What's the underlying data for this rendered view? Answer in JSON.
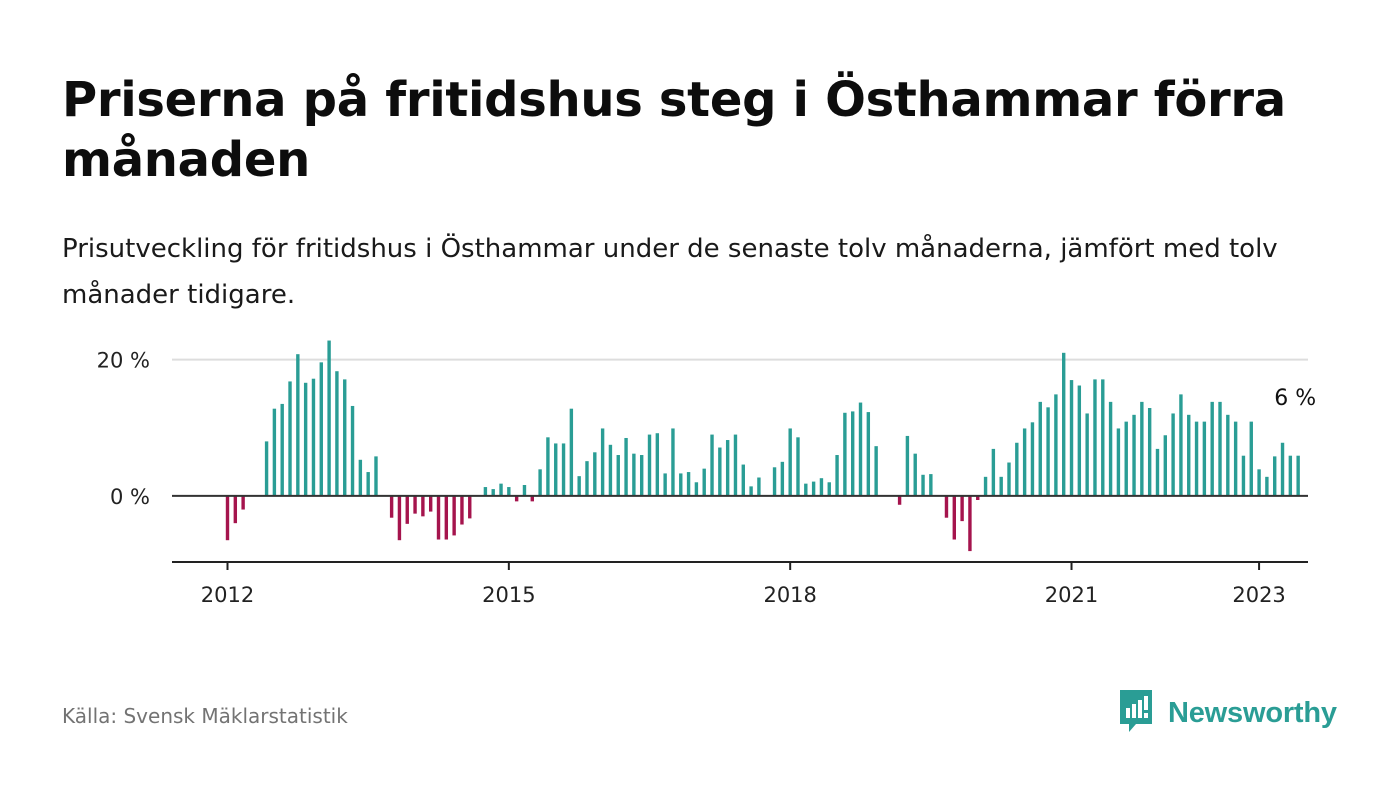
{
  "title": "Priserna på fritidshus steg i Östhammar förra månaden",
  "subtitle": "Prisutveckling för fritidshus i Östhammar under de senaste tolv månaderna, jämfört med tolv månader tidigare.",
  "source": "Källa: Svensk Mäklarstatistik",
  "brand": {
    "name": "Newsworthy",
    "color": "#2a9d95",
    "icon": "newsworthy-logo-icon"
  },
  "colors": {
    "positive": "#2a9d95",
    "negative": "#a5144d",
    "grid": "#dddddd",
    "zero_line": "#333333"
  },
  "chart_data": {
    "type": "bar",
    "start": "2012-01",
    "frequency": "monthly",
    "unit": "%",
    "y_ticks": [
      {
        "value": 0,
        "label": "0 %"
      },
      {
        "value": 20,
        "label": "20 %"
      }
    ],
    "x_ticks": [
      {
        "year": 2012,
        "label": "2012"
      },
      {
        "year": 2015,
        "label": "2015"
      },
      {
        "year": 2018,
        "label": "2018"
      },
      {
        "year": 2021,
        "label": "2021"
      },
      {
        "year": 2023,
        "label": "2023"
      }
    ],
    "ylim": [
      -9.7,
      22
    ],
    "annotation": {
      "text": "6 %",
      "value": 6
    },
    "values": [
      -6.5,
      -4,
      -2,
      0,
      0,
      8,
      12.8,
      13.5,
      16.8,
      20.8,
      16.6,
      17.2,
      19.6,
      22.8,
      18.3,
      17.1,
      13.2,
      5.3,
      3.5,
      5.8,
      0,
      -3.2,
      -6.5,
      -4.1,
      -2.6,
      -3,
      -2.3,
      -6.4,
      -6.4,
      -5.8,
      -4.2,
      -3.3,
      0,
      1.3,
      1,
      1.8,
      1.3,
      -0.8,
      1.6,
      -0.8,
      3.9,
      8.6,
      7.7,
      7.7,
      12.8,
      2.9,
      5.1,
      6.4,
      9.9,
      7.5,
      6,
      8.5,
      6.2,
      6,
      9,
      9.2,
      3.3,
      9.9,
      3.3,
      3.5,
      2,
      4,
      9,
      7.1,
      8.2,
      9,
      4.6,
      1.4,
      2.7,
      0,
      4.2,
      5,
      9.9,
      8.6,
      1.8,
      2.1,
      2.6,
      2,
      6,
      12.2,
      12.4,
      13.7,
      12.3,
      7.3,
      0,
      0,
      -1.3,
      8.8,
      6.2,
      3.1,
      3.2,
      0,
      -3.2,
      -6.4,
      -3.7,
      -8.1,
      -0.6,
      2.8,
      6.9,
      2.8,
      4.9,
      7.8,
      9.9,
      10.8,
      13.8,
      13,
      14.9,
      21,
      17,
      16.2,
      12.1,
      17.1,
      17.1,
      13.8,
      9.9,
      10.9,
      11.9,
      13.8,
      12.9,
      6.9,
      8.9,
      12.1,
      14.9,
      11.9,
      10.9,
      10.9,
      13.8,
      13.8,
      11.9,
      10.9,
      5.9,
      10.9,
      3.9,
      2.8,
      5.8,
      7.8,
      5.9,
      5.9
    ]
  }
}
